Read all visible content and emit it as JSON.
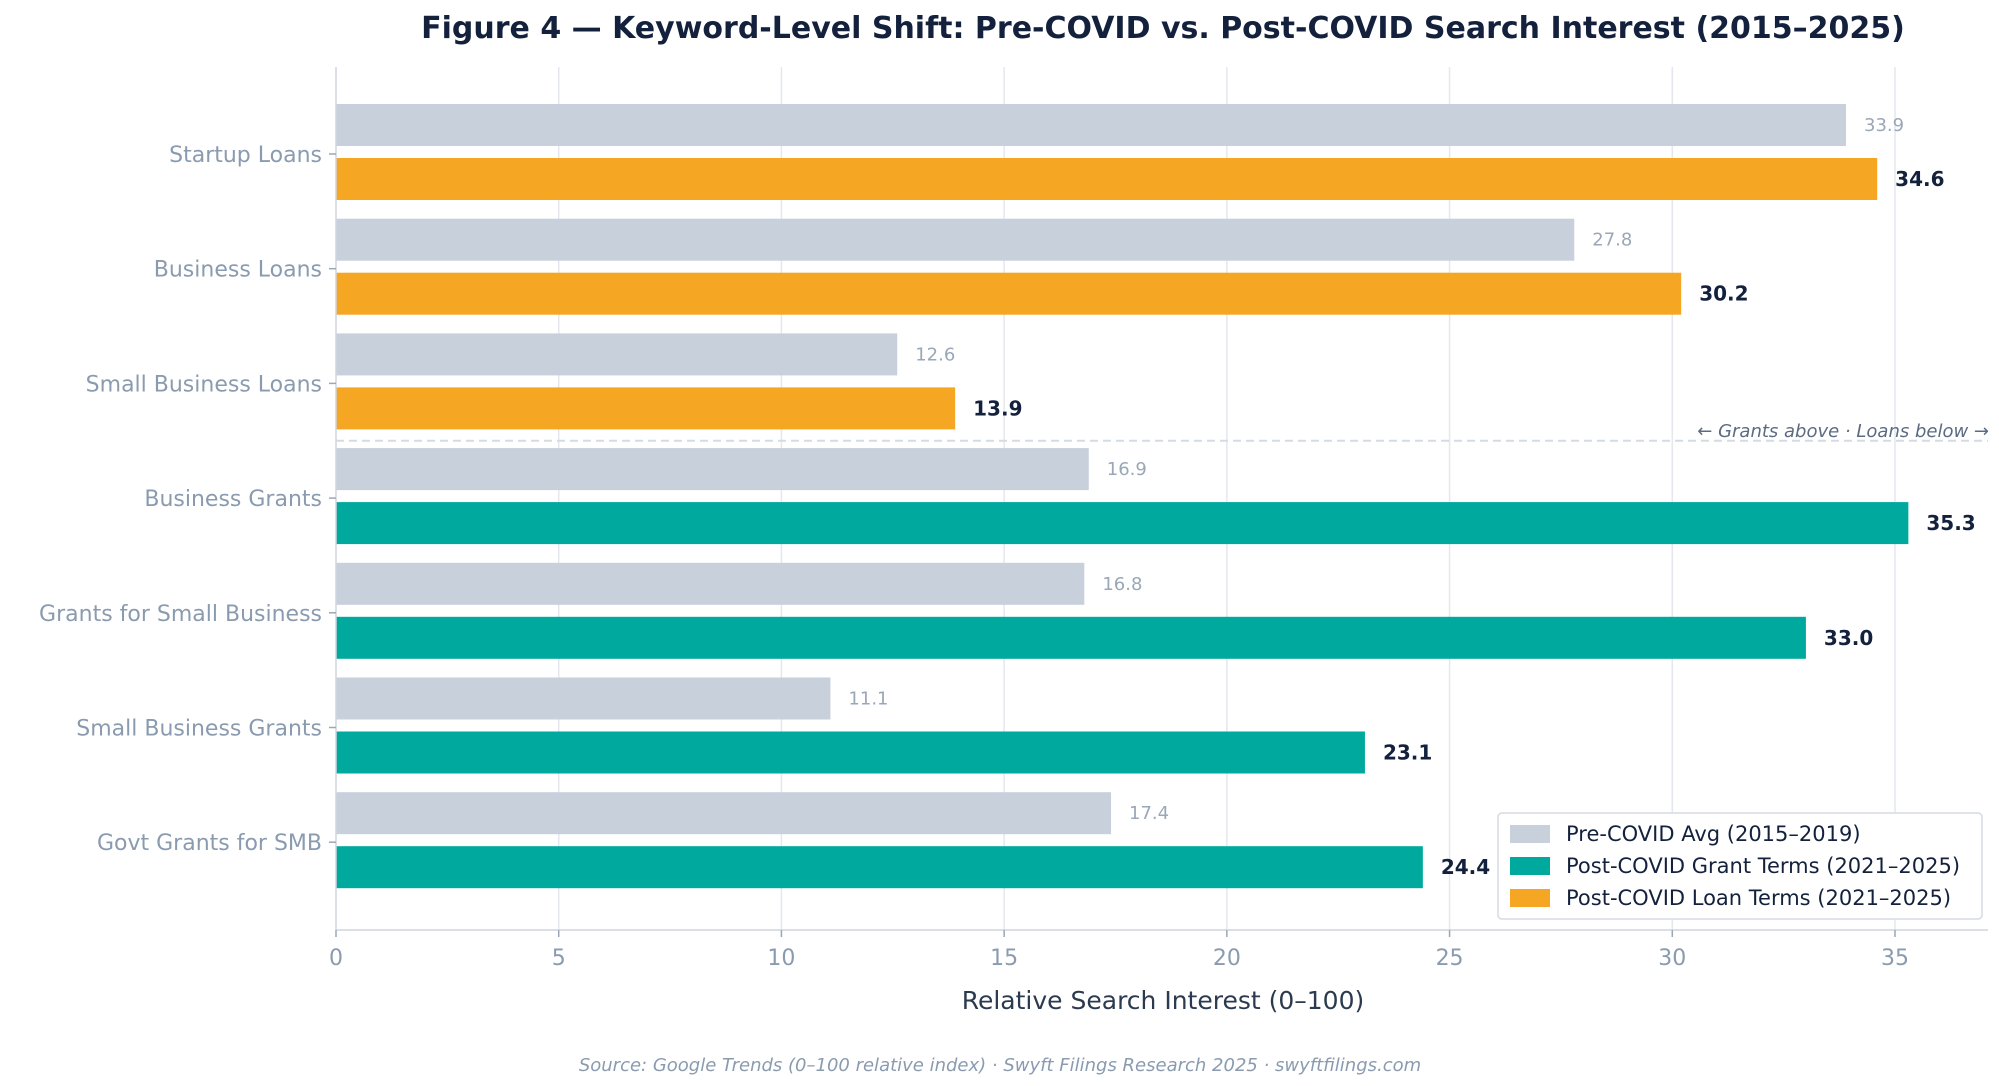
{
  "chart_data": {
    "type": "bar",
    "orientation": "horizontal",
    "title": "Figure 4 — Keyword-Level Shift: Pre-COVID vs. Post-COVID Search Interest (2015–2025)",
    "xlabel": "Relative Search Interest (0–100)",
    "ylabel": "",
    "xlim": [
      0,
      37
    ],
    "xticks": [
      0,
      5,
      10,
      15,
      20,
      25,
      30,
      35
    ],
    "grid": "vertical",
    "legend_position": "bottom-right",
    "categories": [
      "Startup Loans",
      "Business Loans",
      "Small Business Loans",
      "Business Grants",
      "Grants for Small Business",
      "Small Business Grants",
      "Govt Grants for SMB"
    ],
    "series": [
      {
        "name": "Pre-COVID Avg (2015–2019)",
        "color": "#c8d0db",
        "values": [
          33.9,
          27.8,
          12.6,
          16.9,
          16.8,
          11.1,
          17.4
        ],
        "labels": [
          "33.9",
          "27.8",
          "12.6",
          "16.9",
          "16.8",
          "11.1",
          "17.4"
        ]
      },
      {
        "name": "Post-COVID Grant Terms (2021–2025)",
        "color": "#00a99d",
        "values": [
          null,
          null,
          null,
          35.3,
          33.0,
          23.1,
          24.4
        ],
        "labels": [
          "",
          "",
          "",
          "35.3",
          "33.0",
          "23.1",
          "24.4"
        ]
      },
      {
        "name": "Post-COVID Loan Terms (2021–2025)",
        "color": "#f5a623",
        "values": [
          34.6,
          30.2,
          13.9,
          null,
          null,
          null,
          null
        ],
        "labels": [
          "34.6",
          "30.2",
          "13.9",
          "",
          "",
          "",
          ""
        ]
      }
    ],
    "annotation": "← Grants above · Loans below →",
    "source": "Source: Google Trends (0–100 relative index) · Swyft Filings Research 2025 · swyftfilings.com"
  }
}
